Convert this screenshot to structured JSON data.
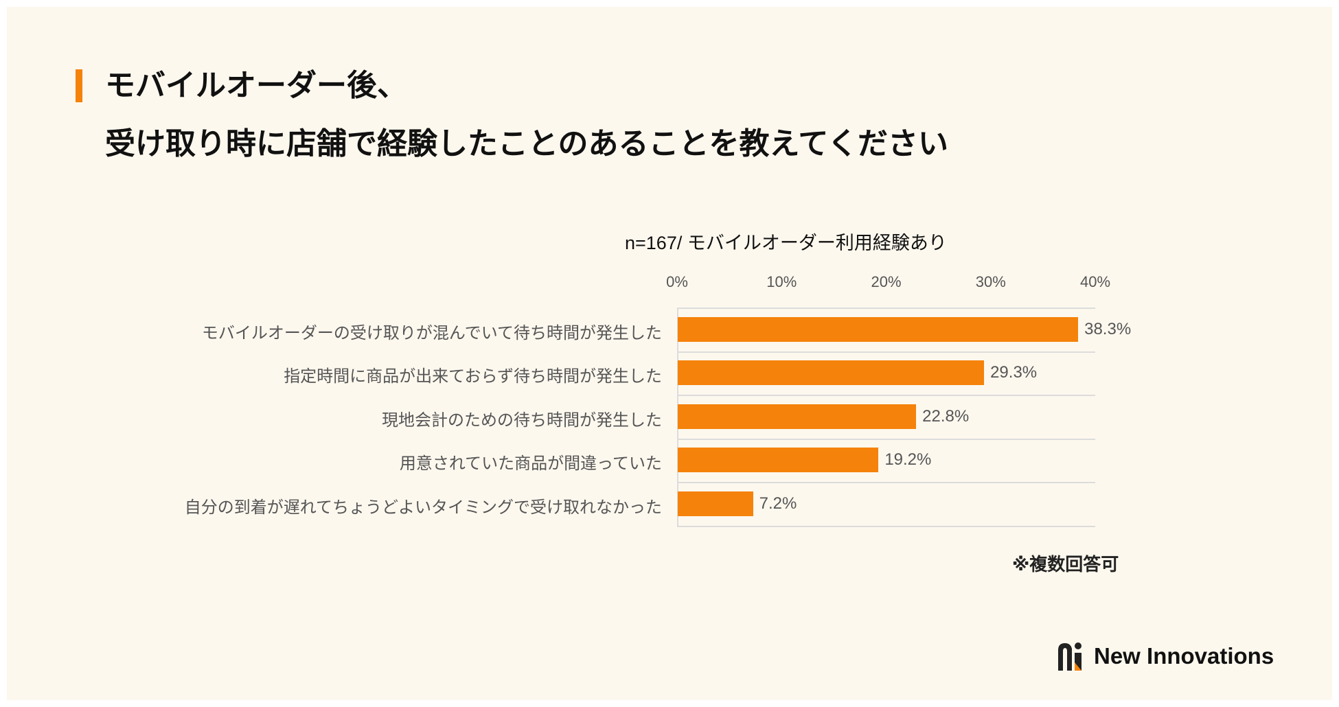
{
  "header": {
    "title_line1": "モバイルオーダー後、",
    "title_line2": "受け取り時に店舗で経験したことのあることを教えてください",
    "accent_color": "#f5820a"
  },
  "chart_data": {
    "type": "bar",
    "orientation": "horizontal",
    "title": "n=167/ モバイルオーダー利用経験あり",
    "categories": [
      "モバイルオーダーの受け取りが混んでいて待ち時間が発生した",
      "指定時間に商品が出来ておらず待ち時間が発生した",
      "現地会計のための待ち時間が発生した",
      "用意されていた商品が間違っていた",
      "自分の到着が遅れてちょうどよいタイミングで受け取れなかった"
    ],
    "values": [
      38.3,
      29.3,
      22.8,
      19.2,
      7.2
    ],
    "value_labels": [
      "38.3%",
      "29.3%",
      "22.8%",
      "19.2%",
      "7.2%"
    ],
    "xlim": [
      0,
      40
    ],
    "xticks": [
      "0%",
      "10%",
      "20%",
      "30%",
      "40%"
    ],
    "xlabel": "",
    "ylabel": "",
    "grid": true,
    "bar_color": "#f5820a",
    "note": "※複数回答可"
  },
  "brand": {
    "name": "New Innovations"
  }
}
